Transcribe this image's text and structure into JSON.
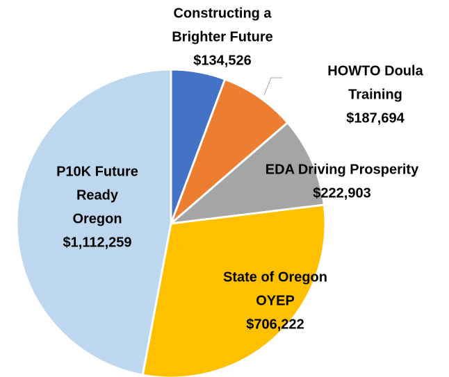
{
  "chart_data": {
    "type": "pie",
    "categories": [
      [
        "Constructing a",
        "Brighter Future"
      ],
      [
        "HOWTO Doula",
        "Training"
      ],
      [
        "EDA Driving Prosperity"
      ],
      [
        "State of Oregon",
        "OYEP"
      ],
      [
        "P10K Future",
        "Ready",
        "Oregon"
      ]
    ],
    "values": [
      134526,
      187694,
      222903,
      706222,
      1112259
    ],
    "value_labels": [
      "$134,526",
      "$187,694",
      "$222,903",
      "$706,222",
      "$1,112,259"
    ],
    "colors": [
      "#4472c4",
      "#ed7d31",
      "#a5a5a5",
      "#ffc000",
      "#bdd7ee"
    ]
  }
}
